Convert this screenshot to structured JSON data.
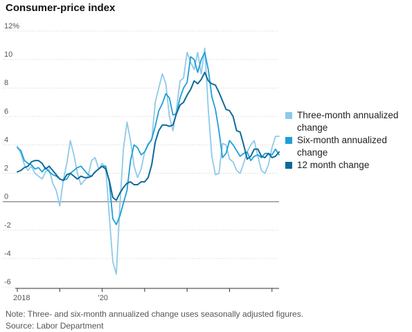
{
  "chart_data": {
    "type": "line",
    "title": "Consumer-price index",
    "x": [
      "2018-01",
      "2018-02",
      "2018-03",
      "2018-04",
      "2018-05",
      "2018-06",
      "2018-07",
      "2018-08",
      "2018-09",
      "2018-10",
      "2018-11",
      "2018-12",
      "2019-01",
      "2019-02",
      "2019-03",
      "2019-04",
      "2019-05",
      "2019-06",
      "2019-07",
      "2019-08",
      "2019-09",
      "2019-10",
      "2019-11",
      "2019-12",
      "2020-01",
      "2020-02",
      "2020-03",
      "2020-04",
      "2020-05",
      "2020-06",
      "2020-07",
      "2020-08",
      "2020-09",
      "2020-10",
      "2020-11",
      "2020-12",
      "2021-01",
      "2021-02",
      "2021-03",
      "2021-04",
      "2021-05",
      "2021-06",
      "2021-07",
      "2021-08",
      "2021-09",
      "2021-10",
      "2021-11",
      "2021-12",
      "2022-01",
      "2022-02",
      "2022-03",
      "2022-04",
      "2022-05",
      "2022-06",
      "2022-07",
      "2022-08",
      "2022-09",
      "2022-10",
      "2022-11",
      "2022-12",
      "2023-01",
      "2023-02",
      "2023-03",
      "2023-04",
      "2023-05",
      "2023-06",
      "2023-07",
      "2023-08",
      "2023-09",
      "2023-10",
      "2023-11",
      "2023-12",
      "2024-01",
      "2024-02",
      "2024-03"
    ],
    "series": [
      {
        "name": "Three-month annualized change",
        "color": "#8ec9ea",
        "values": [
          3.9,
          3.4,
          2.6,
          2.2,
          2.5,
          2.0,
          1.8,
          1.6,
          2.1,
          2.3,
          1.3,
          0.8,
          -0.3,
          1.5,
          2.7,
          4.3,
          3.3,
          2.0,
          1.2,
          1.5,
          1.8,
          2.9,
          3.1,
          2.3,
          2.7,
          2.4,
          -1.0,
          -4.2,
          -5.1,
          -0.3,
          3.7,
          5.6,
          4.3,
          2.5,
          1.7,
          2.3,
          3.5,
          4.1,
          4.3,
          7.0,
          8.0,
          9.0,
          8.3,
          6.0,
          5.0,
          6.5,
          8.5,
          8.7,
          10.5,
          9.8,
          9.3,
          10.5,
          9.0,
          10.8,
          6.5,
          3.2,
          1.9,
          2.0,
          4.1,
          4.0,
          3.0,
          2.8,
          2.2,
          2.0,
          2.7,
          3.5,
          4.0,
          4.3,
          3.2,
          2.2,
          2.0,
          2.6,
          3.8,
          4.6,
          4.6
        ]
      },
      {
        "name": "Six-month annualized change",
        "color": "#1f9ed6",
        "values": [
          3.8,
          3.6,
          2.9,
          2.7,
          2.6,
          2.3,
          2.4,
          2.1,
          2.4,
          2.1,
          1.9,
          1.8,
          1.6,
          1.5,
          1.6,
          2.0,
          2.2,
          2.4,
          2.5,
          2.2,
          1.9,
          1.8,
          2.1,
          2.3,
          2.5,
          2.5,
          1.4,
          -1.2,
          -1.6,
          -1.0,
          -0.1,
          0.8,
          2.9,
          4.0,
          3.8,
          3.3,
          3.5,
          4.0,
          4.4,
          5.3,
          6.4,
          6.9,
          7.6,
          7.3,
          6.1,
          6.2,
          7.3,
          8.0,
          8.4,
          10.2,
          10.0,
          9.1,
          10.0,
          10.5,
          9.3,
          7.4,
          6.5,
          5.0,
          3.1,
          3.4,
          4.3,
          4.0,
          3.6,
          3.2,
          3.4,
          3.5,
          2.9,
          3.2,
          3.3,
          3.1,
          3.4,
          3.4,
          3.3,
          3.7,
          3.3
        ]
      },
      {
        "name": "12 month change",
        "color": "#0f6a98",
        "values": [
          2.1,
          2.2,
          2.4,
          2.5,
          2.8,
          2.9,
          2.9,
          2.7,
          2.3,
          2.5,
          2.2,
          1.9,
          1.6,
          1.5,
          1.9,
          2.0,
          1.8,
          1.6,
          1.8,
          1.7,
          1.7,
          1.8,
          2.1,
          2.3,
          2.5,
          2.3,
          1.5,
          0.3,
          0.1,
          0.6,
          1.0,
          1.3,
          1.4,
          1.2,
          1.2,
          1.4,
          1.4,
          1.7,
          2.6,
          4.2,
          5.0,
          5.4,
          5.4,
          5.3,
          5.4,
          6.2,
          6.8,
          7.0,
          7.5,
          7.9,
          8.5,
          8.3,
          8.6,
          9.1,
          8.5,
          8.3,
          8.2,
          7.7,
          7.1,
          6.5,
          6.4,
          6.0,
          5.0,
          4.9,
          4.0,
          3.0,
          3.2,
          3.7,
          3.7,
          3.2,
          3.1,
          3.4,
          3.1,
          3.2,
          3.5
        ]
      }
    ],
    "ylim": [
      -6,
      12
    ],
    "yticks": [
      {
        "v": 12,
        "label": "12%"
      },
      {
        "v": 10,
        "label": "10"
      },
      {
        "v": 8,
        "label": "8"
      },
      {
        "v": 6,
        "label": "6"
      },
      {
        "v": 4,
        "label": "4"
      },
      {
        "v": 2,
        "label": "2"
      },
      {
        "v": 0,
        "label": "0"
      },
      {
        "v": -2,
        "label": "-2"
      },
      {
        "v": -4,
        "label": "-4"
      },
      {
        "v": -6,
        "label": "-6"
      }
    ],
    "xticks": [
      {
        "i": 0,
        "label": "2018"
      },
      {
        "i": 12,
        "label": ""
      },
      {
        "i": 24,
        "label": "'20"
      },
      {
        "i": 36,
        "label": ""
      },
      {
        "i": 48,
        "label": ""
      },
      {
        "i": 60,
        "label": ""
      },
      {
        "i": 72,
        "label": ""
      }
    ],
    "legend_position": "right",
    "grid": true
  },
  "footer": {
    "note": "Note: Three- and six-month annualized change uses seasonally adjusted figures.",
    "source": "Source: Labor Department"
  }
}
